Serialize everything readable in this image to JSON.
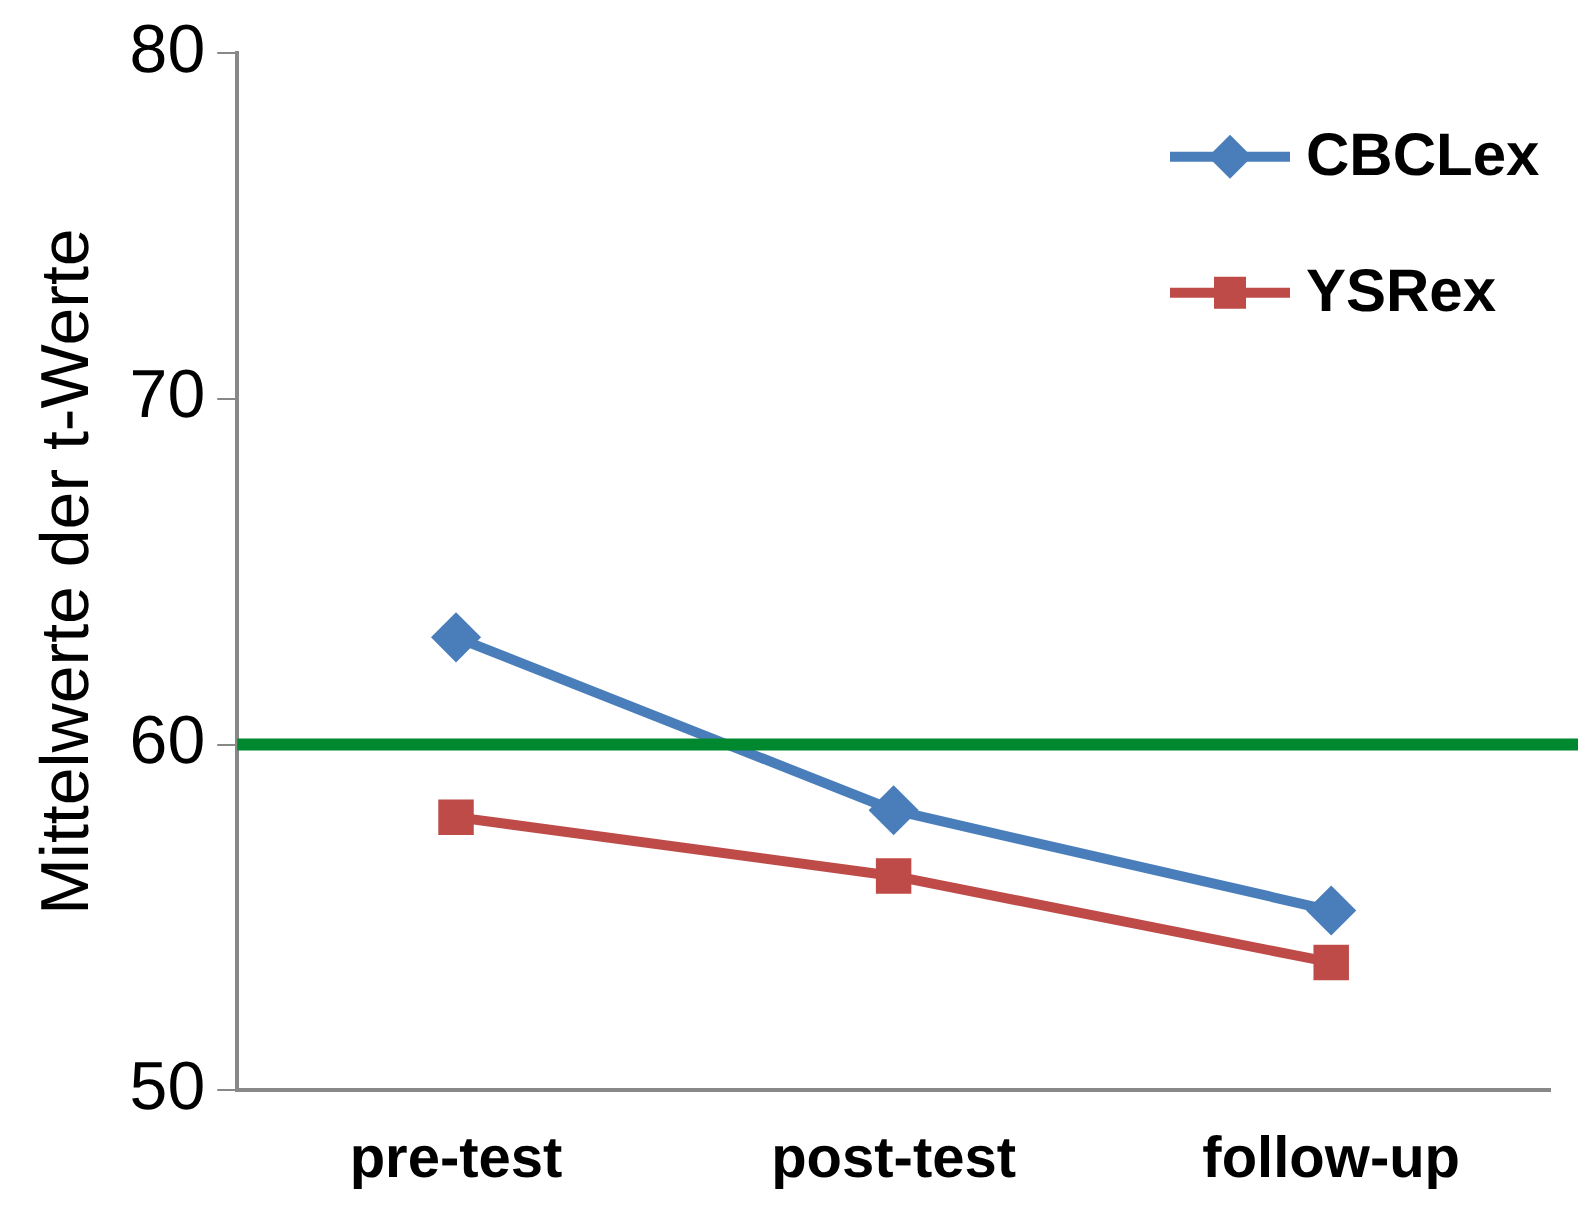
{
  "chart_data": {
    "type": "line",
    "ylabel": "Mittelwerte der t-Werte",
    "categories": [
      "pre-test",
      "post-test",
      "follow-up"
    ],
    "series": [
      {
        "name": "CBCLex",
        "color": "#4a7ebb",
        "marker": "diamond",
        "values": [
          63.1,
          58.1,
          55.2
        ]
      },
      {
        "name": "YSRex",
        "color": "#be4b48",
        "marker": "square",
        "values": [
          57.9,
          56.2,
          53.7
        ]
      }
    ],
    "ylim": [
      50,
      80
    ],
    "yticks": [
      50,
      60,
      70,
      80
    ],
    "grid": false,
    "legend": "top right",
    "ref_lines": [
      {
        "axis": "y",
        "value": 60,
        "color": "#00882f"
      }
    ]
  }
}
